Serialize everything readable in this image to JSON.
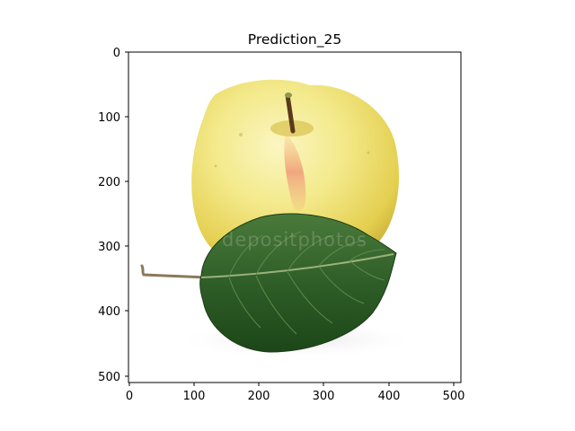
{
  "figure": {
    "title": "Prediction_25",
    "watermark": "depositphotos"
  },
  "axes": {
    "x_ticks": [
      "0",
      "100",
      "200",
      "300",
      "400",
      "500"
    ],
    "y_ticks": [
      "0",
      "100",
      "200",
      "300",
      "400",
      "500"
    ],
    "x_range": [
      0,
      512
    ],
    "y_range": [
      512,
      0
    ],
    "y_inverted": true,
    "grid": false
  },
  "image": {
    "subject": "yellow apple with stem and green leaf on white background",
    "colors": {
      "background": "#ffffff",
      "apple_light": "#f5ee9c",
      "apple_mid": "#e9d659",
      "apple_blush": "#f0a080",
      "stem": "#5a3a1c",
      "leaf_dark": "#1f4d1c",
      "leaf_mid": "#3c6e30",
      "leaf_vein": "#9bb27a"
    }
  }
}
